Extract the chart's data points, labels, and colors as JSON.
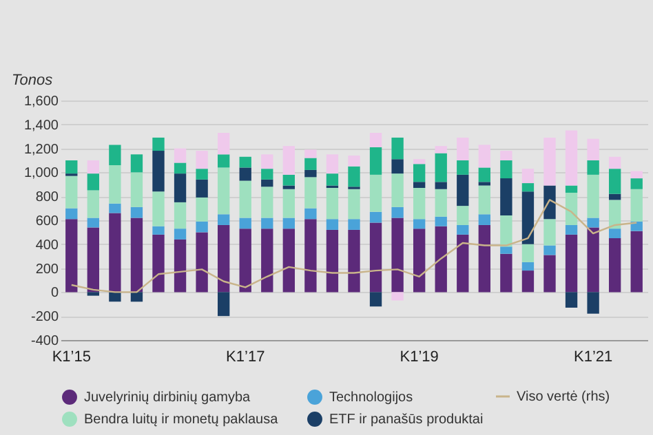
{
  "chart_data": {
    "type": "bar",
    "stacked": true,
    "ylabel": "Tonos",
    "categories": [
      "K1’15",
      null,
      null,
      null,
      null,
      null,
      null,
      null,
      "K1’17",
      null,
      null,
      null,
      null,
      null,
      null,
      null,
      "K1’19",
      null,
      null,
      null,
      null,
      null,
      null,
      null,
      "K1’21",
      null,
      null
    ],
    "series": [
      {
        "name": "Juvelyrinių dirbinių gamyba",
        "color": "#5c2a7a",
        "values": [
          610,
          540,
          660,
          620,
          480,
          440,
          500,
          560,
          530,
          530,
          530,
          610,
          520,
          520,
          580,
          620,
          530,
          550,
          480,
          560,
          320,
          180,
          310,
          480,
          540,
          450,
          510
        ]
      },
      {
        "name": "Technologijos",
        "color": "#4aa3d9",
        "values": [
          90,
          80,
          80,
          90,
          70,
          90,
          90,
          90,
          90,
          90,
          90,
          90,
          90,
          90,
          90,
          90,
          80,
          80,
          80,
          90,
          60,
          70,
          80,
          80,
          80,
          80,
          80
        ]
      },
      {
        "name": "Bendra luitų ir monetų paklausa",
        "color": "#9ee0bf",
        "values": [
          270,
          230,
          320,
          290,
          290,
          220,
          200,
          390,
          310,
          260,
          240,
          260,
          260,
          250,
          310,
          280,
          260,
          230,
          160,
          240,
          260,
          150,
          220,
          270,
          360,
          240,
          270
        ]
      },
      {
        "name": "ETF ir panašūs produktai",
        "color": "#1b3f66",
        "values": [
          20,
          -30,
          -80,
          -80,
          340,
          240,
          150,
          -200,
          110,
          60,
          30,
          60,
          20,
          20,
          -120,
          120,
          50,
          60,
          260,
          30,
          310,
          440,
          280,
          -130,
          -180,
          50,
          null
        ]
      },
      {
        "color": "#1fb58a",
        "values": [
          110,
          140,
          170,
          150,
          110,
          90,
          90,
          110,
          90,
          90,
          90,
          100,
          100,
          170,
          230,
          180,
          150,
          240,
          120,
          120,
          150,
          70,
          null,
          60,
          120,
          210,
          90
        ]
      },
      {
        "color": "#efc9ec",
        "values": [
          null,
          110,
          null,
          null,
          null,
          120,
          150,
          180,
          null,
          120,
          240,
          70,
          160,
          90,
          120,
          -70,
          40,
          60,
          190,
          190,
          80,
          120,
          400,
          460,
          180,
          100,
          60
        ]
      },
      {
        "name": "Viso vertė (rhs)",
        "type": "line",
        "color": "#c9b48a",
        "values": [
          60,
          20,
          0,
          0,
          150,
          170,
          190,
          90,
          40,
          130,
          210,
          180,
          160,
          160,
          180,
          190,
          130,
          280,
          410,
          390,
          390,
          450,
          770,
          670,
          490,
          560,
          580
        ]
      }
    ],
    "ylim": [
      -400,
      1600
    ],
    "yticks": [
      -400,
      -200,
      0,
      200,
      400,
      600,
      800,
      {
        "value": 1000,
        "label": "1,000"
      },
      {
        "value": 1200,
        "label": "1,200"
      },
      {
        "value": 1400,
        "label": "1,400"
      },
      {
        "value": 1600,
        "label": "1,600"
      }
    ],
    "grid": "y",
    "legend": "bottom",
    "marker": "none"
  }
}
